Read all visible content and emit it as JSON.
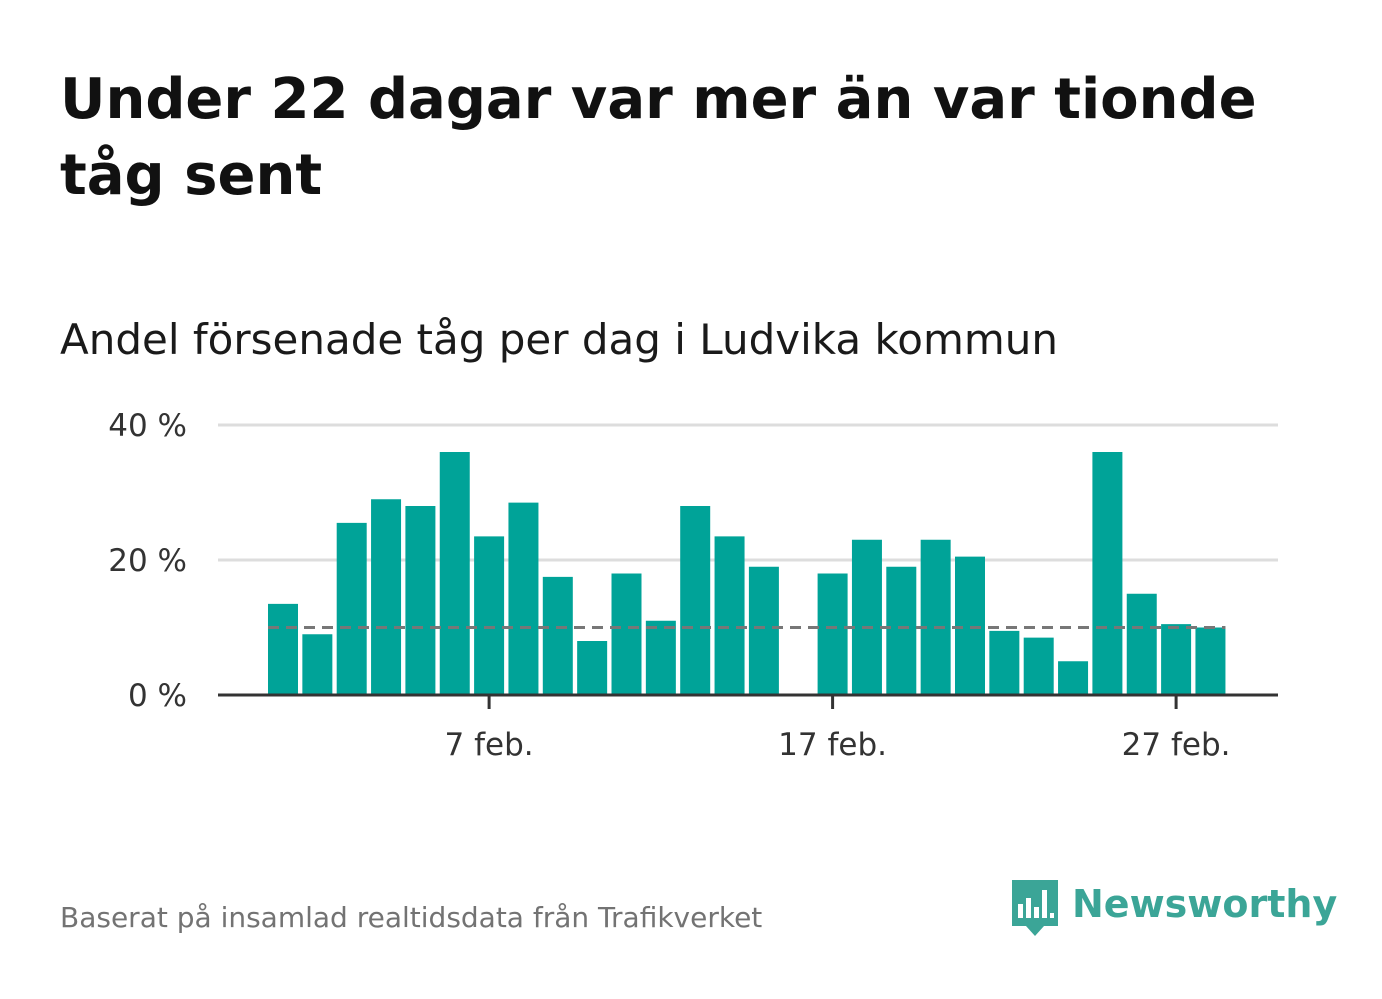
{
  "title": "Under 22 dagar var mer än var tionde tåg sent",
  "subtitle": "Andel försenade tåg per dag i Ludvika kommun",
  "source": "Baserat på insamlad realtidsdata från Trafikverket",
  "logo": {
    "name": "Newsworthy",
    "icon": "newsworthy-logo-icon",
    "color": "#3ba597"
  },
  "colors": {
    "bar": "#00a398",
    "reference_line": "#777777",
    "grid": "#dddddd",
    "axis": "#333333"
  },
  "chart_data": {
    "type": "bar",
    "x": [
      "1 feb.",
      "2 feb.",
      "3 feb.",
      "4 feb.",
      "5 feb.",
      "6 feb.",
      "7 feb.",
      "8 feb.",
      "9 feb.",
      "10 feb.",
      "11 feb.",
      "12 feb.",
      "13 feb.",
      "14 feb.",
      "15 feb.",
      "16 feb.",
      "17 feb.",
      "18 feb.",
      "19 feb.",
      "20 feb.",
      "21 feb.",
      "22 feb.",
      "23 feb.",
      "24 feb.",
      "25 feb.",
      "26 feb.",
      "27 feb.",
      "28 feb."
    ],
    "values": [
      13.5,
      9,
      25.5,
      29,
      28,
      36,
      23.5,
      28.5,
      17.5,
      8,
      18,
      11,
      28,
      23.5,
      19,
      null,
      18,
      23,
      19,
      23,
      20.5,
      9.5,
      8.5,
      5,
      36,
      15,
      10.5,
      10
    ],
    "reference_line": 10,
    "x_ticks": [
      "7 feb.",
      "17 feb.",
      "27 feb."
    ],
    "y_ticks": [
      "0 %",
      "20 %",
      "40 %"
    ],
    "ylim": [
      0,
      40
    ],
    "grid": true
  }
}
